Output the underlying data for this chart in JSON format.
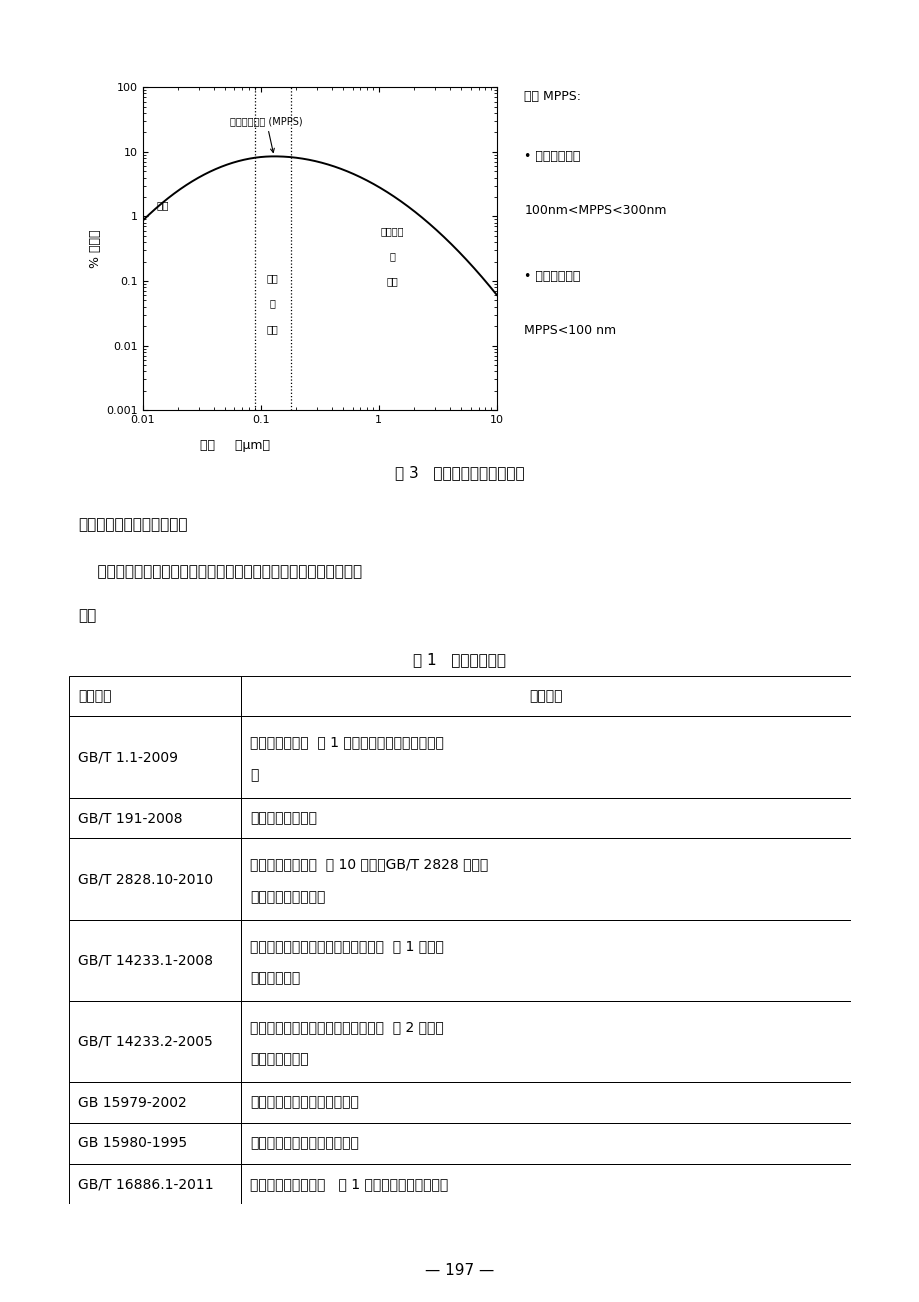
{
  "page_bg": "#ffffff",
  "fig_title": "图 3   滤料穿透率和粒径关系",
  "section_heading": "（四）产品适用的相关标准",
  "paragraph1": "    医用口罩产品应根据自身特点适用以下标准，但不限于引用以下标",
  "paragraph2": "准：",
  "table_title": "表 1   相关产品标准",
  "table_headers": [
    "标准编号",
    "标准名称"
  ],
  "table_rows": [
    [
      "GB/T 1.1-2009",
      "标准化工作导则  第 1 部分：标准的结构和起草规",
      "则"
    ],
    [
      "GB/T 191-2008",
      "包装贮运图示标志",
      ""
    ],
    [
      "GB/T 2828.10-2010",
      "计数抽样检验程序  第 10 部分：GB/T 2828 计数抽",
      "样检验系列标准导则"
    ],
    [
      "GB/T 14233.1-2008",
      "医用输液、输血、注射器具检验方法  第 1 部分：",
      "化学分析方法"
    ],
    [
      "GB/T 14233.2-2005",
      "医用输液、输血、注射器具检验方法  第 2 部分：",
      "生物学试验方法"
    ],
    [
      "GB 15979-2002",
      "一次性使用卫生用品卫生标准",
      ""
    ],
    [
      "GB 15980-1995",
      "一次性使用医疗用品卫生标准",
      ""
    ],
    [
      "GB/T 16886.1-2011",
      "医疗器械生物学评价   第 1 部分：风险管理过程中",
      ""
    ]
  ],
  "page_number": "— 197 —",
  "mpps_label": "最易穿透粒径 (MPPS)",
  "diffusion_label": "扩散",
  "diffusion_interception_label1": "扩散",
  "diffusion_interception_label2": "和",
  "diffusion_interception_label3": "拦截",
  "inertial_label1": "惯性碰撞",
  "inertial_label2": "和",
  "inertial_label3": "拦截",
  "right_title": "一般 MPPS:",
  "mechanical_label": "• 机械性滤料：",
  "mechanical_range": "100nm<MPPS<300nm",
  "electrostatic_label": "• 静电性滤料：",
  "electrostatic_range": "MPPS<100 nm",
  "ylabel": "% 穿透率",
  "xlabel1": "粒径",
  "xlabel2": "（μm）"
}
